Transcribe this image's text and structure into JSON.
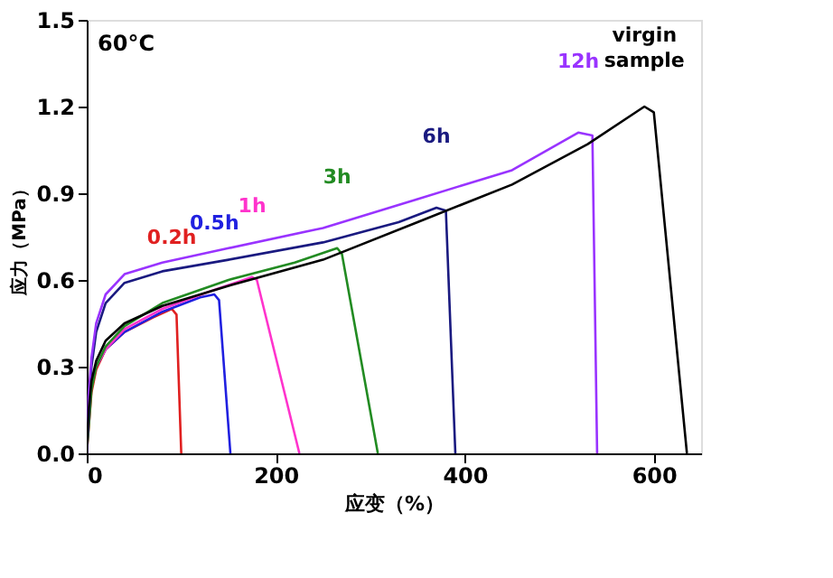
{
  "chart_data": {
    "type": "line",
    "xlabel": "应变（%）",
    "ylabel": "应力（MPa）",
    "xlim": [
      0,
      650
    ],
    "ylim": [
      0,
      1.5
    ],
    "xticks": [
      0,
      200,
      400,
      600
    ],
    "yticks": [
      {
        "value": 0,
        "label": "0.0"
      },
      0.3,
      0.6,
      0.9,
      1.2,
      1.5
    ],
    "grid": false,
    "legend": false,
    "marker": "none",
    "line_style": "solid",
    "annotations": [
      "60°C"
    ],
    "series": [
      {
        "name": "0.2h",
        "color": "#e02020",
        "x": [
          0,
          5,
          10,
          20,
          40,
          70,
          90,
          95,
          100
        ],
        "values": [
          0,
          0.21,
          0.29,
          0.36,
          0.42,
          0.47,
          0.5,
          0.48,
          0
        ]
      },
      {
        "name": "0.5h",
        "color": "#2020e0",
        "x": [
          10,
          20,
          40,
          80,
          120,
          135,
          140,
          152
        ],
        "values": [
          0.3,
          0.36,
          0.42,
          0.49,
          0.54,
          0.55,
          0.53,
          0
        ]
      },
      {
        "name": "1h",
        "color": "#ff33cc",
        "x": [
          10,
          20,
          40,
          80,
          130,
          175,
          180,
          225
        ],
        "values": [
          0.3,
          0.36,
          0.43,
          0.5,
          0.56,
          0.61,
          0.6,
          0
        ]
      },
      {
        "name": "3h",
        "color": "#228b22",
        "x": [
          0,
          5,
          10,
          20,
          40,
          80,
          150,
          220,
          265,
          270,
          308
        ],
        "values": [
          0,
          0.22,
          0.3,
          0.37,
          0.44,
          0.52,
          0.6,
          0.66,
          0.71,
          0.69,
          0
        ]
      },
      {
        "name": "6h",
        "color": "#1a1a80",
        "x": [
          0,
          5,
          10,
          20,
          40,
          80,
          150,
          250,
          330,
          370,
          380,
          390
        ],
        "values": [
          0,
          0.3,
          0.42,
          0.52,
          0.59,
          0.63,
          0.67,
          0.73,
          0.8,
          0.85,
          0.84,
          0
        ]
      },
      {
        "name": "12h",
        "color": "#9933ff",
        "x": [
          0,
          2,
          5,
          10,
          20,
          40,
          80,
          150,
          250,
          350,
          450,
          520,
          535,
          540
        ],
        "values": [
          0,
          0.2,
          0.33,
          0.45,
          0.55,
          0.62,
          0.66,
          0.71,
          0.78,
          0.88,
          0.98,
          1.11,
          1.1,
          0
        ]
      },
      {
        "name": "virgin sample",
        "color": "#000000",
        "x": [
          0,
          2,
          5,
          10,
          20,
          40,
          80,
          150,
          250,
          350,
          450,
          530,
          590,
          600,
          635
        ],
        "values": [
          0,
          0.15,
          0.25,
          0.32,
          0.39,
          0.45,
          0.51,
          0.58,
          0.67,
          0.8,
          0.93,
          1.07,
          1.2,
          1.18,
          0
        ]
      }
    ]
  }
}
